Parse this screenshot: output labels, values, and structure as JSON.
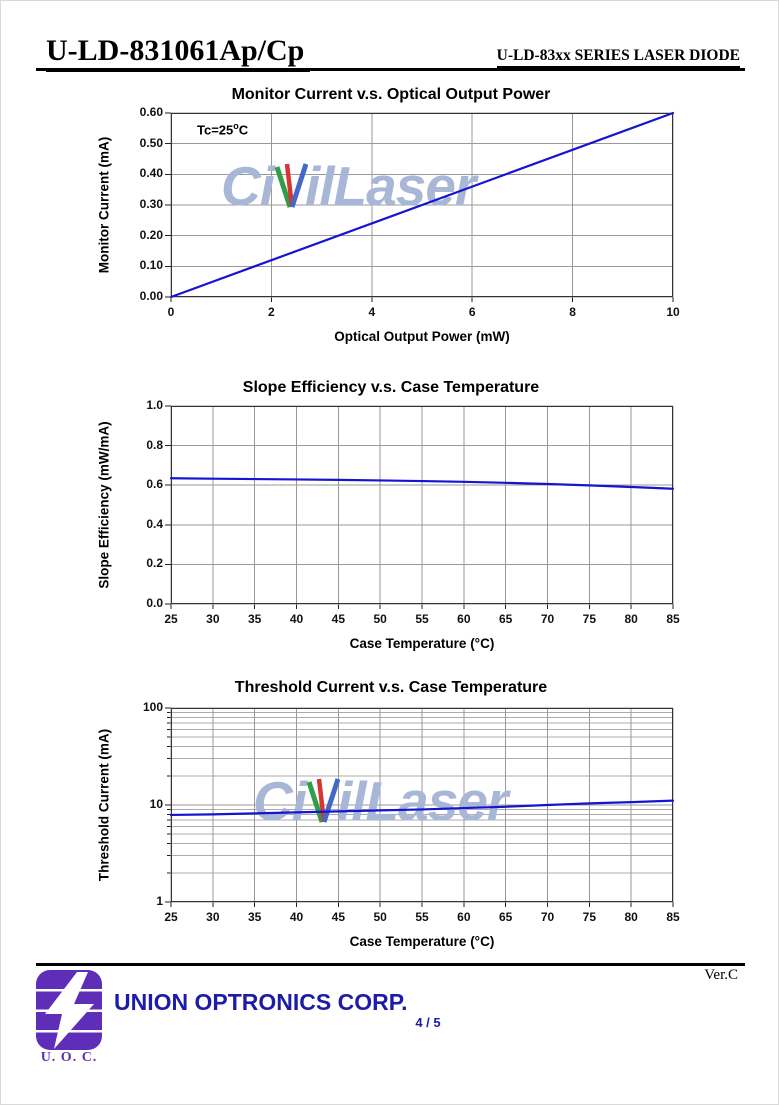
{
  "header": {
    "title": "U-LD-831061Ap/Cp",
    "subtitle": "U-LD-83xx SERIES LASER DIODE"
  },
  "watermark": {
    "part1": "Ci",
    "part2": "ilLaser",
    "full_text": "CivilLaser",
    "text_color": "#a9b7d6",
    "v_colors": {
      "green": "#2f9e44",
      "red": "#d63535",
      "blue": "#4468c8"
    }
  },
  "chart_data": [
    {
      "type": "line",
      "title": "Monitor Current v.s. Optical Output Power",
      "xlabel": "Optical Output Power (mW)",
      "ylabel": "Monitor Current (mA)",
      "annotation": {
        "pre": "Tc=25",
        "sup": "o",
        "post": "C"
      },
      "xlim": [
        0,
        10
      ],
      "ylim": [
        0,
        0.6
      ],
      "yscale": "linear",
      "grid": true,
      "x_ticks": [
        0,
        2,
        4,
        6,
        8,
        10
      ],
      "x_tick_labels": [
        "0",
        "2",
        "4",
        "6",
        "8",
        "10"
      ],
      "y_ticks": [
        0,
        0.1,
        0.2,
        0.3,
        0.4,
        0.5,
        0.6
      ],
      "y_tick_labels": [
        "0.00",
        "0.10",
        "0.20",
        "0.30",
        "0.40",
        "0.50",
        "0.60"
      ],
      "line_color": "#1414d2",
      "series": [
        {
          "name": "Monitor Current",
          "x": [
            0,
            10
          ],
          "y": [
            0,
            0.6
          ]
        }
      ]
    },
    {
      "type": "line",
      "title": "Slope Efficiency v.s. Case Temperature",
      "xlabel": "Case Temperature (°C)",
      "ylabel": "Slope Efficiency (mW/mA)",
      "xlim": [
        25,
        85
      ],
      "ylim": [
        0,
        1.0
      ],
      "yscale": "linear",
      "grid": true,
      "x_ticks": [
        25,
        30,
        35,
        40,
        45,
        50,
        55,
        60,
        65,
        70,
        75,
        80,
        85
      ],
      "x_tick_labels": [
        "25",
        "30",
        "35",
        "40",
        "45",
        "50",
        "55",
        "60",
        "65",
        "70",
        "75",
        "80",
        "85"
      ],
      "y_ticks": [
        0,
        0.2,
        0.4,
        0.6,
        0.8,
        1.0
      ],
      "y_tick_labels": [
        "0.0",
        "0.2",
        "0.4",
        "0.6",
        "0.8",
        "1.0"
      ],
      "line_color": "#1414d2",
      "series": [
        {
          "name": "Slope Efficiency",
          "x": [
            25,
            30,
            35,
            40,
            45,
            50,
            55,
            60,
            65,
            70,
            75,
            80,
            85
          ],
          "y": [
            0.635,
            0.633,
            0.631,
            0.629,
            0.627,
            0.624,
            0.621,
            0.617,
            0.612,
            0.606,
            0.599,
            0.591,
            0.582
          ]
        }
      ]
    },
    {
      "type": "line",
      "title": "Threshold Current v.s. Case Temperature",
      "xlabel": "Case Temperature (°C)",
      "ylabel": "Threshold Current (mA)",
      "xlim": [
        25,
        85
      ],
      "ylim": [
        1,
        100
      ],
      "yscale": "log",
      "grid": true,
      "x_ticks": [
        25,
        30,
        35,
        40,
        45,
        50,
        55,
        60,
        65,
        70,
        75,
        80,
        85
      ],
      "x_tick_labels": [
        "25",
        "30",
        "35",
        "40",
        "45",
        "50",
        "55",
        "60",
        "65",
        "70",
        "75",
        "80",
        "85"
      ],
      "y_ticks": [
        1,
        10,
        100
      ],
      "y_tick_labels": [
        "1",
        "10",
        "100"
      ],
      "y_minor": [
        2,
        3,
        4,
        5,
        6,
        7,
        8,
        9,
        20,
        30,
        40,
        50,
        60,
        70,
        80,
        90
      ],
      "line_color": "#1414d2",
      "series": [
        {
          "name": "Threshold Current",
          "x": [
            25,
            30,
            35,
            40,
            45,
            50,
            55,
            60,
            65,
            70,
            75,
            80,
            85
          ],
          "y": [
            7.9,
            8.0,
            8.2,
            8.4,
            8.6,
            8.8,
            9.0,
            9.3,
            9.6,
            10.0,
            10.4,
            10.7,
            11.1
          ]
        }
      ]
    }
  ],
  "footer": {
    "version": "Ver.C",
    "company": "UNION OPTRONICS CORP.",
    "company_color": "#1c1ca8",
    "page_number": "4 / 5",
    "logo_caption": "U. O. C.",
    "logo_color": "#5e2eb8"
  }
}
